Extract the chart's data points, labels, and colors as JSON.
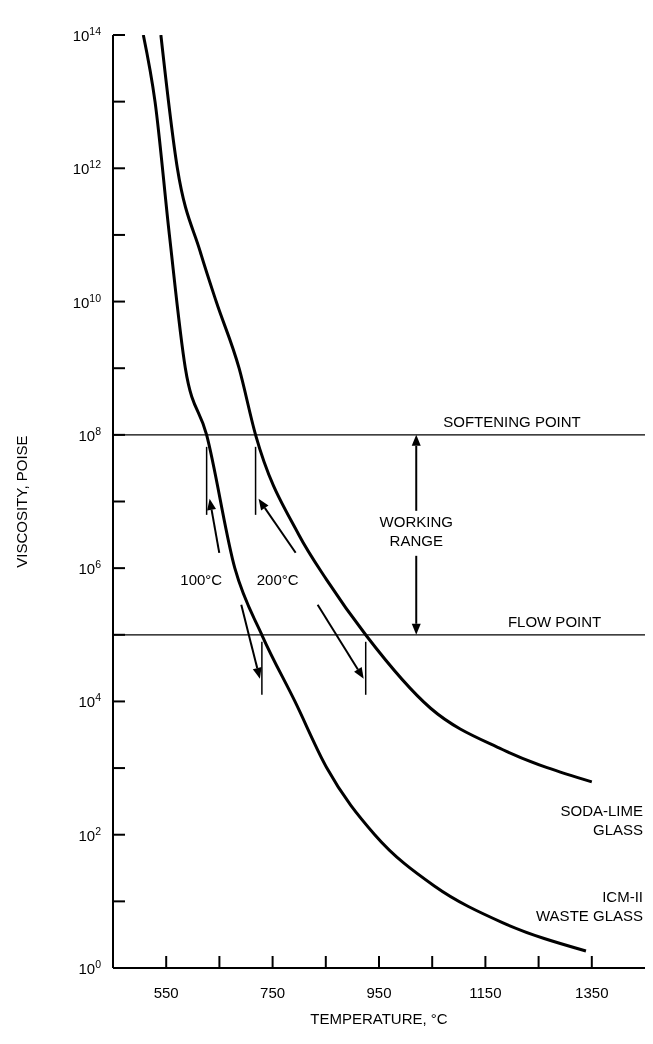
{
  "chart_data": {
    "type": "line",
    "xlabel": "TEMPERATURE, °C",
    "ylabel": "VISCOSITY, POISE",
    "xlim": [
      450,
      1450
    ],
    "xticks": [
      550,
      {
        "value": 650,
        "label": null
      },
      750,
      {
        "value": 850,
        "label": null
      },
      950,
      {
        "value": 1050,
        "label": null
      },
      1150,
      {
        "value": 1250,
        "label": null
      },
      1350
    ],
    "ylim": [
      1,
      100000000000000.0
    ],
    "log": true,
    "yticks": [
      {
        "value": 1,
        "label": "10$^{0}$"
      },
      {
        "value": 10,
        "label": null
      },
      {
        "value": 100,
        "label": "10$^{2}$"
      },
      {
        "value": 1000,
        "label": null
      },
      {
        "value": 10000,
        "label": "10$^{4}$"
      },
      {
        "value": 100000,
        "label": null
      },
      {
        "value": 1000000,
        "label": "10$^{6}$"
      },
      {
        "value": 10000000,
        "label": null
      },
      {
        "value": 100000000,
        "label": "10$^{8}$"
      },
      {
        "value": 1000000000,
        "label": null
      },
      {
        "value": 10000000000,
        "label": "10$^{10}$"
      },
      {
        "value": 100000000000,
        "label": null
      },
      {
        "value": 1000000000000,
        "label": "10$^{12}$"
      },
      {
        "value": 10000000000000,
        "label": null
      },
      {
        "value": 100000000000000,
        "label": "10$^{14}$"
      }
    ],
    "marker": "none",
    "line_style": "solid",
    "series": [
      {
        "name": "ICM-II\nWASTE GLASS",
        "color": "#000000",
        "x": [
          507,
          529,
          556,
          586,
          626,
          679,
          731,
          792,
          852,
          942,
          1054,
          1182,
          1339
        ],
        "values": [
          100000000000000.0,
          10000000000000.0,
          100000000000.0,
          1000000000.0,
          100000000.0,
          1000000.0,
          95000,
          10000,
          1000,
          100,
          17,
          4.8,
          1.8
        ]
      },
      {
        "name": "SODA-LIME\nGLASS",
        "color": "#000000",
        "x": [
          540,
          571,
          614,
          644,
          687,
          718,
          799,
          852,
          927,
          1047,
          1182,
          1350
        ],
        "values": [
          100000000000000.0,
          1000000000000.0,
          56000000000.0,
          10000000000.0,
          1000000000.0,
          100000000.0,
          3200000.0,
          660000.0,
          95000,
          7900,
          1900,
          620
        ]
      }
    ],
    "ref_lines": [
      {
        "axis": "y",
        "value": 100000000,
        "label": "SOFTENING POINT",
        "color": "#000000"
      },
      {
        "axis": "y",
        "value": 100000,
        "label": "FLOW POINT",
        "color": "#000000"
      }
    ],
    "annotations": [
      "100°C",
      "200°C",
      "WORKING\nRANGE"
    ]
  }
}
